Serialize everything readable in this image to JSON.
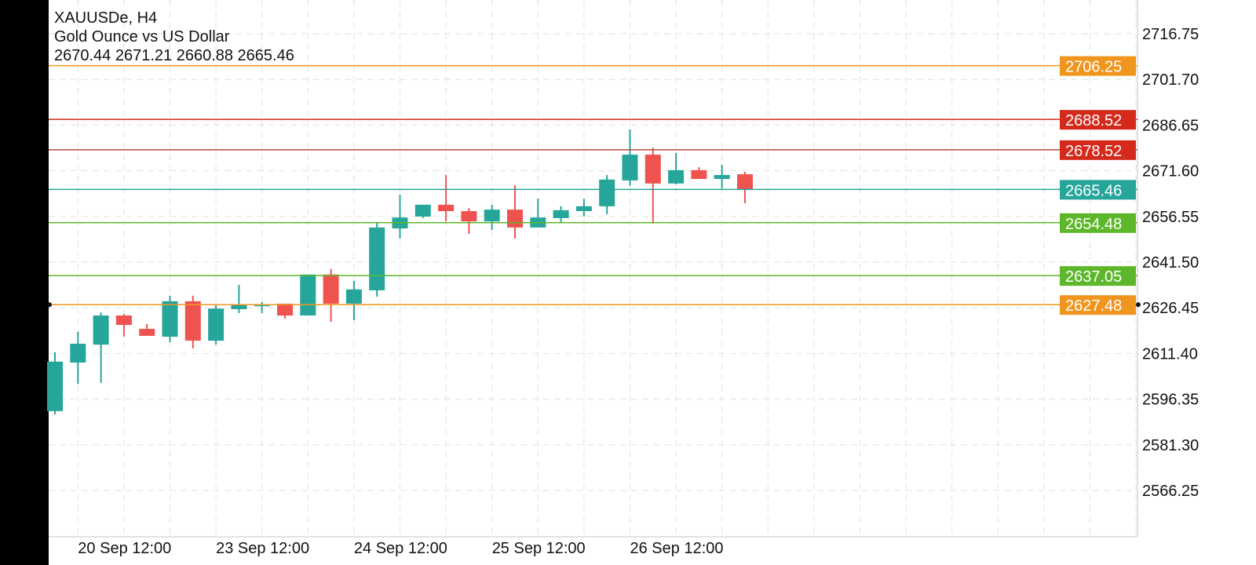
{
  "header": {
    "symbol_timeframe": "XAUUSDe, H4",
    "description": "Gold Ounce vs US Dollar",
    "ohlc": "2670.44 2671.21 2660.88 2665.46"
  },
  "chart_data": {
    "type": "candlestick",
    "symbol": "XAUUSDe",
    "timeframe": "H4",
    "ylim": [
      2566.25,
      2716.75
    ],
    "grid": true,
    "y_ticks": [
      2716.75,
      2701.7,
      2686.65,
      2671.6,
      2656.55,
      2641.5,
      2626.45,
      2611.4,
      2596.35,
      2581.3,
      2566.25
    ],
    "x_tick_labels": [
      "20 Sep 12:00",
      "23 Sep 12:00",
      "24 Sep 12:00",
      "25 Sep 12:00",
      "26 Sep 12:00"
    ],
    "colors": {
      "bull": "#26a69a",
      "bear": "#ef5350"
    },
    "candles": [
      {
        "o": 2592.4,
        "h": 2611.8,
        "l": 2591.3,
        "c": 2608.7
      },
      {
        "o": 2608.4,
        "h": 2618.5,
        "l": 2601.4,
        "c": 2614.6
      },
      {
        "o": 2614.3,
        "h": 2624.9,
        "l": 2601.7,
        "c": 2623.9
      },
      {
        "o": 2623.9,
        "h": 2624.4,
        "l": 2616.9,
        "c": 2620.8
      },
      {
        "o": 2619.5,
        "h": 2621.1,
        "l": 2617.2,
        "c": 2617.2
      },
      {
        "o": 2616.9,
        "h": 2630.4,
        "l": 2615.1,
        "c": 2628.6
      },
      {
        "o": 2628.6,
        "h": 2630.4,
        "l": 2613.1,
        "c": 2615.6
      },
      {
        "o": 2615.6,
        "h": 2627.3,
        "l": 2614.3,
        "c": 2626.2
      },
      {
        "o": 2626.0,
        "h": 2634.0,
        "l": 2624.7,
        "c": 2627.3
      },
      {
        "o": 2627.0,
        "h": 2628.3,
        "l": 2624.7,
        "c": 2627.5
      },
      {
        "o": 2627.8,
        "h": 2627.8,
        "l": 2622.9,
        "c": 2623.9
      },
      {
        "o": 2623.9,
        "h": 2637.4,
        "l": 2623.9,
        "c": 2637.4
      },
      {
        "o": 2637.4,
        "h": 2639.2,
        "l": 2621.8,
        "c": 2627.8
      },
      {
        "o": 2627.8,
        "h": 2635.3,
        "l": 2622.4,
        "c": 2632.5
      },
      {
        "o": 2632.2,
        "h": 2654.7,
        "l": 2630.1,
        "c": 2652.9
      },
      {
        "o": 2652.6,
        "h": 2663.7,
        "l": 2649.3,
        "c": 2656.2
      },
      {
        "o": 2656.5,
        "h": 2660.4,
        "l": 2656.0,
        "c": 2660.4
      },
      {
        "o": 2660.4,
        "h": 2670.2,
        "l": 2654.9,
        "c": 2658.3
      },
      {
        "o": 2658.3,
        "h": 2659.3,
        "l": 2650.8,
        "c": 2654.9
      },
      {
        "o": 2654.9,
        "h": 2660.4,
        "l": 2652.1,
        "c": 2658.8
      },
      {
        "o": 2658.8,
        "h": 2666.8,
        "l": 2649.3,
        "c": 2652.9
      },
      {
        "o": 2652.9,
        "h": 2662.4,
        "l": 2652.9,
        "c": 2656.2
      },
      {
        "o": 2656.0,
        "h": 2659.9,
        "l": 2654.7,
        "c": 2658.6
      },
      {
        "o": 2658.3,
        "h": 2662.4,
        "l": 2656.5,
        "c": 2659.9
      },
      {
        "o": 2659.9,
        "h": 2670.2,
        "l": 2657.3,
        "c": 2668.7
      },
      {
        "o": 2668.4,
        "h": 2685.2,
        "l": 2666.6,
        "c": 2676.9
      },
      {
        "o": 2676.9,
        "h": 2679.2,
        "l": 2654.2,
        "c": 2667.4
      },
      {
        "o": 2667.4,
        "h": 2677.5,
        "l": 2667.1,
        "c": 2671.8
      },
      {
        "o": 2671.8,
        "h": 2672.8,
        "l": 2668.9,
        "c": 2668.9
      },
      {
        "o": 2668.9,
        "h": 2673.6,
        "l": 2665.8,
        "c": 2670.2
      },
      {
        "o": 2670.44,
        "h": 2671.21,
        "l": 2660.88,
        "c": 2665.46
      }
    ],
    "levels": [
      {
        "price": 2706.25,
        "label": "2706.25",
        "color": "#f0961e"
      },
      {
        "price": 2688.52,
        "label": "2688.52",
        "color": "#d42a1c"
      },
      {
        "price": 2678.52,
        "label": "2678.52",
        "color": "#d42a1c",
        "line_color": "#b5483c"
      },
      {
        "price": 2665.46,
        "label": "2665.46",
        "color": "#26a69a"
      },
      {
        "price": 2654.48,
        "label": "2654.48",
        "color": "#5cb82a"
      },
      {
        "price": 2637.05,
        "label": "2637.05",
        "color": "#5cb82a"
      },
      {
        "price": 2627.48,
        "label": "2627.48",
        "color": "#f0961e"
      }
    ]
  }
}
